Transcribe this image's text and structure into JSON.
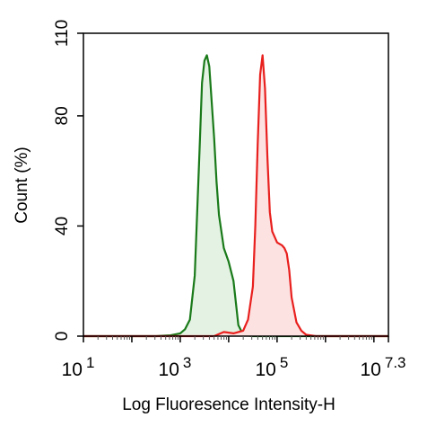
{
  "chart_data": {
    "type": "area",
    "title": "",
    "xlabel": "Log Fluoresence Intensity-H",
    "ylabel": "Count  (%)",
    "x_scale": "log10",
    "xlim": [
      1,
      7.3
    ],
    "ylim": [
      0,
      110
    ],
    "x_ticks": [
      {
        "value": 1,
        "base": "10",
        "exp": "1"
      },
      {
        "value": 3,
        "base": "10",
        "exp": "3"
      },
      {
        "value": 5,
        "base": "10",
        "exp": "5"
      },
      {
        "value": 7.3,
        "base": "10",
        "exp": "7.3"
      }
    ],
    "y_ticks": [
      {
        "value": 0,
        "label": "0"
      },
      {
        "value": 40,
        "label": "40"
      },
      {
        "value": 80,
        "label": "80"
      },
      {
        "value": 110,
        "label": "110"
      }
    ],
    "grid": false,
    "legend": "none",
    "series": [
      {
        "color": "#1a7a1a",
        "fill": "#e4f2e4",
        "x": [
          1.0,
          2.5,
          2.8,
          3.0,
          3.1,
          3.2,
          3.3,
          3.4,
          3.45,
          3.5,
          3.55,
          3.6,
          3.65,
          3.7,
          3.75,
          3.8,
          3.9,
          4.0,
          4.1,
          4.15,
          4.2,
          4.3,
          4.5,
          7.3
        ],
        "y": [
          0,
          0,
          0.3,
          1,
          2.5,
          6,
          22,
          68,
          92,
          100,
          102,
          98,
          85,
          72,
          56,
          44,
          32,
          27,
          20,
          12,
          4,
          0.5,
          0,
          0
        ]
      },
      {
        "color": "#e8201e",
        "fill": "#fde2e2",
        "x": [
          1.0,
          3.7,
          3.9,
          4.1,
          4.3,
          4.4,
          4.5,
          4.55,
          4.6,
          4.65,
          4.7,
          4.75,
          4.8,
          4.85,
          4.9,
          5.0,
          5.1,
          5.15,
          5.2,
          5.25,
          5.3,
          5.4,
          5.5,
          5.6,
          5.8,
          7.3
        ],
        "y": [
          0,
          0,
          1.5,
          1,
          2,
          6,
          18,
          40,
          70,
          95,
          102,
          90,
          65,
          45,
          38,
          34,
          33,
          32,
          30,
          24,
          14,
          5,
          2,
          0.5,
          0,
          0
        ]
      }
    ]
  }
}
